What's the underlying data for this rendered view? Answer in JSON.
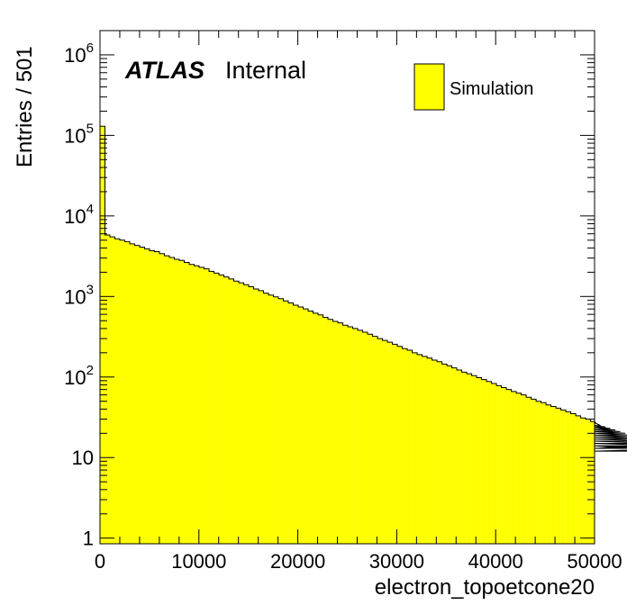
{
  "chart_data": {
    "type": "bar",
    "histogram": true,
    "xlabel": "electron_topoetcone20",
    "ylabel": "Entries / 501",
    "xlim": [
      0,
      50000
    ],
    "ylim": [
      0.85,
      2000000
    ],
    "yscale": "log",
    "x_ticks": [
      0,
      10000,
      20000,
      30000,
      40000,
      50000
    ],
    "x_tick_labels": [
      "0",
      "10000",
      "20000",
      "30000",
      "40000",
      "50000"
    ],
    "y_ticks": [
      1,
      10,
      100,
      1000,
      10000,
      100000,
      1000000
    ],
    "y_tick_labels": [
      {
        "base": "1",
        "exp": ""
      },
      {
        "base": "10",
        "exp": ""
      },
      {
        "base": "10",
        "exp": "2"
      },
      {
        "base": "10",
        "exp": "3"
      },
      {
        "base": "10",
        "exp": "4"
      },
      {
        "base": "10",
        "exp": "5"
      },
      {
        "base": "10",
        "exp": "6"
      }
    ],
    "bin_width": 501,
    "values": [
      130000,
      5800,
      5500,
      5200,
      5000,
      4800,
      4500,
      4300,
      4100,
      3900,
      3700,
      3600,
      3400,
      3200,
      3050,
      2900,
      2800,
      2650,
      2500,
      2400,
      2300,
      2200,
      2050,
      1950,
      1850,
      1750,
      1650,
      1550,
      1480,
      1400,
      1320,
      1240,
      1180,
      1100,
      1040,
      990,
      940,
      880,
      830,
      780,
      740,
      700,
      660,
      620,
      590,
      550,
      520,
      490,
      470,
      440,
      420,
      400,
      380,
      360,
      340,
      320,
      300,
      285,
      270,
      255,
      240,
      225,
      215,
      200,
      190,
      180,
      172,
      162,
      155,
      145,
      138,
      130,
      122,
      115,
      110,
      104,
      98,
      93,
      88,
      83,
      78,
      74,
      70,
      66,
      63,
      60,
      56,
      53,
      50,
      48,
      45,
      43,
      41,
      39,
      37,
      35,
      33,
      31,
      30,
      28,
      27,
      25,
      24,
      23,
      22,
      21,
      20,
      19,
      18,
      17,
      16,
      15,
      15,
      14,
      13,
      14,
      12,
      13,
      15
    ]
  },
  "legend": {
    "entries": [
      {
        "label": "Simulation",
        "color": "#ffff00"
      }
    ]
  },
  "atlas_label": {
    "bold": "ATLAS",
    "normal": "Internal"
  },
  "colors": {
    "fill": "#ffff00",
    "line": "#000000"
  }
}
